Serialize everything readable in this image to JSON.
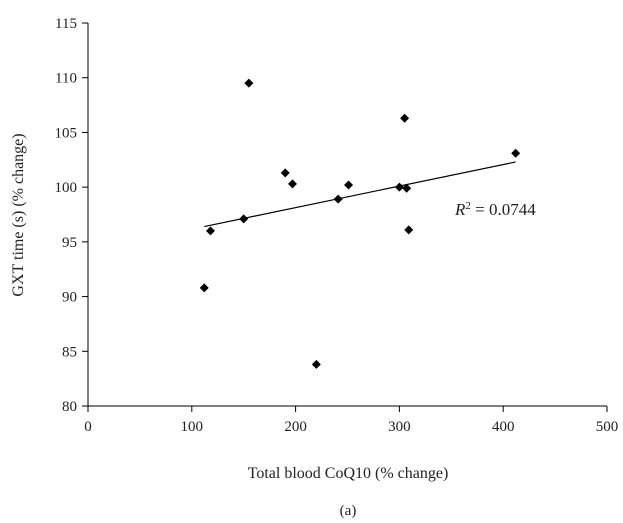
{
  "chart_data": {
    "type": "scatter",
    "xlabel": "Total blood CoQ10 (% change)",
    "ylabel": "GXT time (s) (% change)",
    "xlim": [
      0,
      500
    ],
    "ylim": [
      80,
      115
    ],
    "xticks": [
      0,
      100,
      200,
      300,
      400,
      500
    ],
    "yticks": [
      80,
      85,
      90,
      95,
      100,
      105,
      110,
      115
    ],
    "grid": false,
    "panel_label": "(a)",
    "annotation": {
      "r_symbol": "R",
      "r_superscript": "2",
      "r_rest": " = 0.0744"
    },
    "points": [
      {
        "x": 112,
        "y": 90.8
      },
      {
        "x": 118,
        "y": 96.0
      },
      {
        "x": 150,
        "y": 97.1
      },
      {
        "x": 155,
        "y": 109.5
      },
      {
        "x": 190,
        "y": 101.3
      },
      {
        "x": 197,
        "y": 100.3
      },
      {
        "x": 220,
        "y": 83.8
      },
      {
        "x": 241,
        "y": 98.9
      },
      {
        "x": 251,
        "y": 100.2
      },
      {
        "x": 300,
        "y": 100.0
      },
      {
        "x": 305,
        "y": 106.3
      },
      {
        "x": 307,
        "y": 99.9
      },
      {
        "x": 309,
        "y": 96.1
      },
      {
        "x": 412,
        "y": 103.1
      }
    ],
    "trendline": {
      "x": [
        112,
        412
      ],
      "y": [
        96.4,
        102.3
      ]
    }
  }
}
